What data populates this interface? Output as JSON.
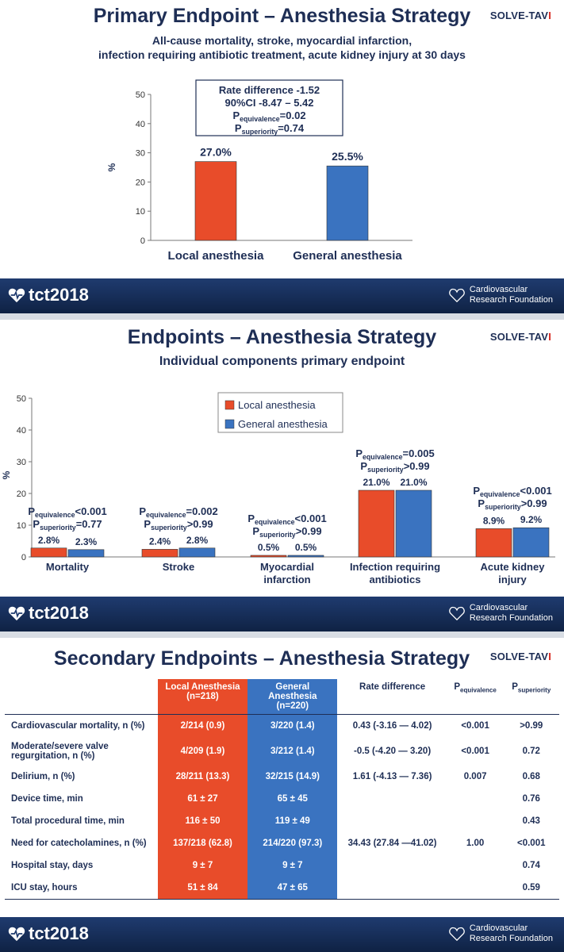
{
  "slides": [
    {
      "title": "Primary Endpoint – Anesthesia Strategy",
      "subtitle_line1": "All-cause mortality, stroke, myocardial infarction,",
      "subtitle_line2": "infection requiring antibiotic treatment, acute kidney injury at 30 days",
      "brand": "SOLVE-TAV"
    },
    {
      "title": "Endpoints – Anesthesia Strategy",
      "subtitle_line1": "Individual components primary endpoint",
      "brand": "SOLVE-TAV"
    },
    {
      "title": "Secondary Endpoints – Anesthesia Strategy",
      "brand": "SOLVE-TAV"
    }
  ],
  "footer": {
    "tct": "tct2018",
    "crf_line1": "Cardiovascular",
    "crf_line2": "Research Foundation"
  },
  "colors": {
    "local": "#e84c2a",
    "general": "#3a73c0",
    "navy": "#1e2e55"
  },
  "chart_data": [
    {
      "type": "bar",
      "categories": [
        "Local anesthesia",
        "General anesthesia"
      ],
      "values": [
        27.0,
        25.5
      ],
      "data_labels": [
        "27.0%",
        "25.5%"
      ],
      "ylabel": "%",
      "ylim": [
        0,
        50
      ],
      "yticks": [
        0,
        10,
        20,
        30,
        40,
        50
      ],
      "annotation": {
        "line1": "Rate difference -1.52",
        "line2": "90%CI -8.47 – 5.42",
        "p_equiv_main": "P",
        "p_equiv_sub": "equivalence",
        "p_equiv_val": "=0.02",
        "p_sup_main": "P",
        "p_sup_sub": "superiority",
        "p_sup_val": "=0.74"
      }
    },
    {
      "type": "bar",
      "categories": [
        "Mortality",
        "Stroke",
        "Myocardial infarction",
        "Infection requiring antibiotics",
        "Acute kidney injury"
      ],
      "category_lines": [
        [
          "Mortality"
        ],
        [
          "Stroke"
        ],
        [
          "Myocardial",
          "infarction"
        ],
        [
          "Infection requiring",
          "antibiotics"
        ],
        [
          "Acute kidney",
          "injury"
        ]
      ],
      "series": [
        {
          "name": "Local anesthesia",
          "values": [
            2.8,
            2.4,
            0.5,
            21.0,
            8.9
          ],
          "labels": [
            "2.8%",
            "2.4%",
            "0.5%",
            "21.0%",
            "8.9%"
          ]
        },
        {
          "name": "General anesthesia",
          "values": [
            2.3,
            2.8,
            0.5,
            21.0,
            9.2
          ],
          "labels": [
            "2.3%",
            "2.8%",
            "0.5%",
            "21.0%",
            "9.2%"
          ]
        }
      ],
      "p_values": [
        {
          "equiv": "<0.001",
          "sup": "=0.77"
        },
        {
          "equiv": "=0.002",
          "sup": ">0.99"
        },
        {
          "equiv": "<0.001",
          "sup": ">0.99"
        },
        {
          "equiv": "=0.005",
          "sup": ">0.99"
        },
        {
          "equiv": "<0.001",
          "sup": ">0.99"
        }
      ],
      "p_main": "P",
      "p_equiv_sub": "equivalence",
      "p_sup_sub": "superiority",
      "ylabel": "%",
      "ylim": [
        0,
        50
      ],
      "yticks": [
        0,
        10,
        20,
        30,
        40,
        50
      ],
      "legend_position": "top-center"
    },
    {
      "type": "table",
      "headers": {
        "local_line1": "Local Anesthesia",
        "local_line2": "(n=218)",
        "general_line1": "General",
        "general_line2": "Anesthesia",
        "general_line3": "(n=220)",
        "rate": "Rate difference",
        "p_main": "P",
        "p_equiv_sub": "equivalence",
        "p_sup_sub": "superiority"
      },
      "rows": [
        {
          "label": "Cardiovascular mortality, n (%)",
          "local": "2/214 (0.9)",
          "general": "3/220 (1.4)",
          "rate": "0.43 (-3.16 — 4.02)",
          "p_equiv": "<0.001",
          "p_sup": ">0.99"
        },
        {
          "label": "Moderate/severe valve regurgitation, n (%)",
          "local": "4/209 (1.9)",
          "general": "3/212 (1.4)",
          "rate": "-0.5 (-4.20 — 3.20)",
          "p_equiv": "<0.001",
          "p_sup": "0.72"
        },
        {
          "label": "Delirium, n (%)",
          "local": "28/211 (13.3)",
          "general": "32/215 (14.9)",
          "rate": "1.61 (-4.13 — 7.36)",
          "p_equiv": "0.007",
          "p_sup": "0.68"
        },
        {
          "label": "Device time, min",
          "local": "61 ± 27",
          "general": "65 ± 45",
          "rate": "",
          "p_equiv": "",
          "p_sup": "0.76"
        },
        {
          "label": "Total procedural time, min",
          "local": "116 ± 50",
          "general": "119 ± 49",
          "rate": "",
          "p_equiv": "",
          "p_sup": "0.43"
        },
        {
          "label": "Need for catecholamines, n (%)",
          "local": "137/218 (62.8)",
          "general": "214/220 (97.3)",
          "rate": "34.43 (27.84 —41.02)",
          "p_equiv": "1.00",
          "p_sup": "<0.001"
        },
        {
          "label": "Hospital stay, days",
          "local": "9 ± 7",
          "general": "9 ± 7",
          "rate": "",
          "p_equiv": "",
          "p_sup": "0.74"
        },
        {
          "label": "ICU stay, hours",
          "local": "51 ± 84",
          "general": "47 ± 65",
          "rate": "",
          "p_equiv": "",
          "p_sup": "0.59"
        }
      ]
    }
  ]
}
